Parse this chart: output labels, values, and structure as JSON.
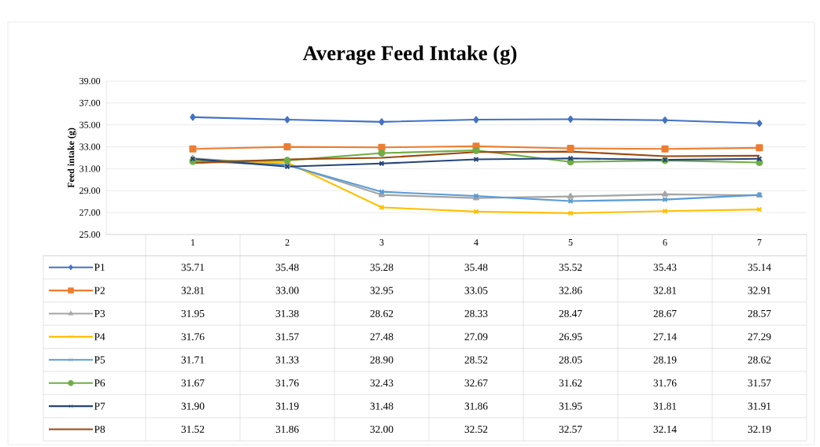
{
  "chart_data": {
    "type": "line",
    "title": "Average Feed Intake (g)",
    "ylabel": "Feed intake (g)",
    "categories": [
      "1",
      "2",
      "3",
      "4",
      "5",
      "6",
      "7"
    ],
    "series": [
      {
        "name": "P1",
        "color": "#4472c4",
        "marker": "diamond",
        "values": [
          35.71,
          35.48,
          35.28,
          35.48,
          35.52,
          35.43,
          35.14
        ],
        "value_labels": [
          "35.71",
          "35.48",
          "35.28",
          "35.48",
          "35.52",
          "35.43",
          "35.14"
        ]
      },
      {
        "name": "P2",
        "color": "#ed7d31",
        "marker": "square",
        "values": [
          32.81,
          33.0,
          32.95,
          33.05,
          32.86,
          32.81,
          32.91
        ],
        "value_labels": [
          "32.81",
          "33.00",
          "32.95",
          "33.05",
          "32.86",
          "32.81",
          "32.91"
        ]
      },
      {
        "name": "P3",
        "color": "#a5a5a5",
        "marker": "triangle",
        "values": [
          31.95,
          31.38,
          28.62,
          28.33,
          28.47,
          28.67,
          28.57
        ],
        "value_labels": [
          "31.95",
          "31.38",
          "28.62",
          "28.33",
          "28.47",
          "28.67",
          "28.57"
        ]
      },
      {
        "name": "P4",
        "color": "#ffc000",
        "marker": "cross",
        "values": [
          31.76,
          31.57,
          27.48,
          27.09,
          26.95,
          27.14,
          27.29
        ],
        "value_labels": [
          "31.76",
          "31.57",
          "27.48",
          "27.09",
          "26.95",
          "27.14",
          "27.29"
        ]
      },
      {
        "name": "P5",
        "color": "#5b9bd5",
        "marker": "cross",
        "values": [
          31.71,
          31.33,
          28.9,
          28.52,
          28.05,
          28.19,
          28.62
        ],
        "value_labels": [
          "31.71",
          "31.33",
          "28.90",
          "28.52",
          "28.05",
          "28.19",
          "28.62"
        ]
      },
      {
        "name": "P6",
        "color": "#70ad47",
        "marker": "circle",
        "values": [
          31.67,
          31.76,
          32.43,
          32.67,
          31.62,
          31.76,
          31.57
        ],
        "value_labels": [
          "31.67",
          "31.76",
          "32.43",
          "32.67",
          "31.62",
          "31.76",
          "31.57"
        ]
      },
      {
        "name": "P7",
        "color": "#264478",
        "marker": "cross",
        "values": [
          31.9,
          31.19,
          31.48,
          31.86,
          31.95,
          31.81,
          31.91
        ],
        "value_labels": [
          "31.90",
          "31.19",
          "31.48",
          "31.86",
          "31.95",
          "31.81",
          "31.91"
        ]
      },
      {
        "name": "P8",
        "color": "#9e480e",
        "marker": "none",
        "values": [
          31.52,
          31.86,
          32.0,
          32.52,
          32.57,
          32.14,
          32.19
        ],
        "value_labels": [
          "31.52",
          "31.86",
          "32.00",
          "32.52",
          "32.57",
          "32.14",
          "32.19"
        ]
      }
    ],
    "ylim": [
      25,
      39
    ],
    "yticks": [
      {
        "value": 25,
        "label": "25.00"
      },
      {
        "value": 27,
        "label": "27.00"
      },
      {
        "value": 29,
        "label": "29.00"
      },
      {
        "value": 31,
        "label": "31.00"
      },
      {
        "value": 33,
        "label": "33.00"
      },
      {
        "value": 35,
        "label": "35.00"
      },
      {
        "value": 37,
        "label": "37.00"
      },
      {
        "value": 39,
        "label": "39.00"
      }
    ],
    "grid": "y",
    "legend": "bottom left",
    "line_style": "solid"
  }
}
